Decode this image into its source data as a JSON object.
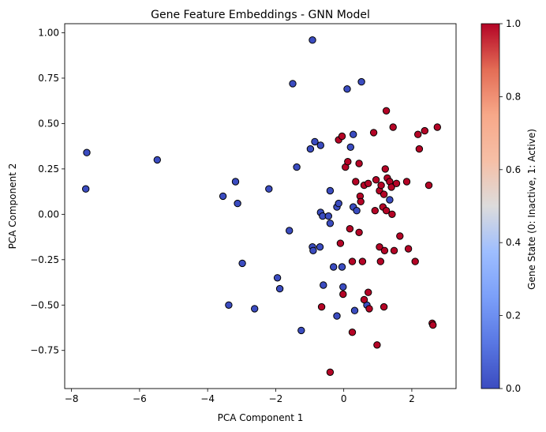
{
  "chart_data": {
    "type": "scatter",
    "title": "Gene Feature Embeddings - GNN Model",
    "xlabel": "PCA Component 1",
    "ylabel": "PCA Component 2",
    "xlim": [
      -8.2,
      3.3
    ],
    "ylim": [
      -0.96,
      1.05
    ],
    "xticks": [
      -8,
      -6,
      -4,
      -2,
      0,
      2
    ],
    "yticks": [
      -0.75,
      -0.5,
      -0.25,
      0.0,
      0.25,
      0.5,
      0.75,
      1.0
    ],
    "xtick_labels": [
      "−8",
      "−6",
      "−4",
      "−2",
      "0",
      "2"
    ],
    "ytick_labels": [
      "−0.75",
      "−0.50",
      "−0.25",
      "0.00",
      "0.25",
      "0.50",
      "0.75",
      "1.00"
    ],
    "grid": false,
    "colormap": "coolwarm",
    "colorbar": {
      "label": "Gene State (0: Inactive, 1: Active)",
      "range": [
        0,
        1
      ],
      "ticks": [
        0.0,
        0.2,
        0.4,
        0.6,
        0.8,
        1.0
      ],
      "tick_labels": [
        "0.0",
        "0.2",
        "0.4",
        "0.6",
        "0.8",
        "1.0"
      ]
    },
    "colors": {
      "inactive": "#3b4cc0",
      "active": "#b40426",
      "marker_edge": "#000000"
    },
    "points": [
      {
        "x": -7.55,
        "y": 0.34,
        "state": 0
      },
      {
        "x": -7.58,
        "y": 0.14,
        "state": 0
      },
      {
        "x": -5.48,
        "y": 0.3,
        "state": 0
      },
      {
        "x": -3.55,
        "y": 0.1,
        "state": 0
      },
      {
        "x": -3.18,
        "y": 0.18,
        "state": 0
      },
      {
        "x": -3.12,
        "y": 0.06,
        "state": 0
      },
      {
        "x": -2.98,
        "y": -0.27,
        "state": 0
      },
      {
        "x": -3.38,
        "y": -0.5,
        "state": 0
      },
      {
        "x": -2.62,
        "y": -0.52,
        "state": 0
      },
      {
        "x": -2.2,
        "y": 0.14,
        "state": 0
      },
      {
        "x": -1.95,
        "y": -0.35,
        "state": 0
      },
      {
        "x": -1.88,
        "y": -0.41,
        "state": 0
      },
      {
        "x": -1.6,
        "y": -0.09,
        "state": 0
      },
      {
        "x": -1.5,
        "y": 0.72,
        "state": 0
      },
      {
        "x": -1.38,
        "y": 0.26,
        "state": 0
      },
      {
        "x": -1.25,
        "y": -0.64,
        "state": 0
      },
      {
        "x": -0.92,
        "y": 0.96,
        "state": 0
      },
      {
        "x": -0.98,
        "y": 0.36,
        "state": 0
      },
      {
        "x": -0.85,
        "y": 0.4,
        "state": 0
      },
      {
        "x": -0.68,
        "y": 0.38,
        "state": 0
      },
      {
        "x": -0.92,
        "y": -0.18,
        "state": 0
      },
      {
        "x": -0.9,
        "y": -0.2,
        "state": 0
      },
      {
        "x": -0.7,
        "y": -0.18,
        "state": 0
      },
      {
        "x": -0.68,
        "y": 0.01,
        "state": 0
      },
      {
        "x": -0.62,
        "y": -0.01,
        "state": 0
      },
      {
        "x": -0.45,
        "y": -0.01,
        "state": 0
      },
      {
        "x": -0.4,
        "y": -0.05,
        "state": 0
      },
      {
        "x": -0.4,
        "y": 0.13,
        "state": 0
      },
      {
        "x": -0.6,
        "y": -0.39,
        "state": 0
      },
      {
        "x": -0.3,
        "y": -0.29,
        "state": 0
      },
      {
        "x": -0.2,
        "y": 0.04,
        "state": 0
      },
      {
        "x": -0.15,
        "y": 0.06,
        "state": 0
      },
      {
        "x": -0.2,
        "y": -0.56,
        "state": 0
      },
      {
        "x": -0.05,
        "y": -0.29,
        "state": 0
      },
      {
        "x": -0.02,
        "y": -0.4,
        "state": 0
      },
      {
        "x": 0.1,
        "y": 0.69,
        "state": 0
      },
      {
        "x": 0.2,
        "y": 0.37,
        "state": 0
      },
      {
        "x": 0.28,
        "y": 0.44,
        "state": 0
      },
      {
        "x": 0.28,
        "y": 0.04,
        "state": 0
      },
      {
        "x": 0.38,
        "y": 0.02,
        "state": 0
      },
      {
        "x": 0.52,
        "y": 0.73,
        "state": 0
      },
      {
        "x": 0.32,
        "y": -0.53,
        "state": 0
      },
      {
        "x": 0.68,
        "y": -0.5,
        "state": 0
      },
      {
        "x": 1.35,
        "y": 0.08,
        "state": 0
      },
      {
        "x": -0.15,
        "y": 0.41,
        "state": 1
      },
      {
        "x": -0.05,
        "y": 0.43,
        "state": 1
      },
      {
        "x": 0.05,
        "y": 0.26,
        "state": 1
      },
      {
        "x": 0.12,
        "y": 0.29,
        "state": 1
      },
      {
        "x": 0.45,
        "y": 0.28,
        "state": 1
      },
      {
        "x": 0.35,
        "y": 0.18,
        "state": 1
      },
      {
        "x": 0.48,
        "y": 0.1,
        "state": 1
      },
      {
        "x": 0.5,
        "y": 0.07,
        "state": 1
      },
      {
        "x": 0.6,
        "y": 0.16,
        "state": 1
      },
      {
        "x": 0.72,
        "y": 0.17,
        "state": 1
      },
      {
        "x": 0.88,
        "y": 0.45,
        "state": 1
      },
      {
        "x": 0.95,
        "y": 0.19,
        "state": 1
      },
      {
        "x": 0.92,
        "y": 0.02,
        "state": 1
      },
      {
        "x": 0.18,
        "y": -0.08,
        "state": 1
      },
      {
        "x": 0.45,
        "y": -0.1,
        "state": 1
      },
      {
        "x": -0.1,
        "y": -0.16,
        "state": 1
      },
      {
        "x": 0.25,
        "y": -0.26,
        "state": 1
      },
      {
        "x": 0.55,
        "y": -0.26,
        "state": 1
      },
      {
        "x": -0.65,
        "y": -0.51,
        "state": 1
      },
      {
        "x": -0.02,
        "y": -0.44,
        "state": 1
      },
      {
        "x": 0.6,
        "y": -0.47,
        "state": 1
      },
      {
        "x": 0.72,
        "y": -0.43,
        "state": 1
      },
      {
        "x": 0.75,
        "y": -0.52,
        "state": 1
      },
      {
        "x": 0.25,
        "y": -0.65,
        "state": 1
      },
      {
        "x": 0.98,
        "y": -0.72,
        "state": 1
      },
      {
        "x": -0.4,
        "y": -0.87,
        "state": 1
      },
      {
        "x": 1.25,
        "y": 0.57,
        "state": 1
      },
      {
        "x": 1.45,
        "y": 0.48,
        "state": 1
      },
      {
        "x": 1.05,
        "y": 0.13,
        "state": 1
      },
      {
        "x": 1.1,
        "y": 0.16,
        "state": 1
      },
      {
        "x": 1.18,
        "y": 0.11,
        "state": 1
      },
      {
        "x": 1.22,
        "y": 0.25,
        "state": 1
      },
      {
        "x": 1.28,
        "y": 0.2,
        "state": 1
      },
      {
        "x": 1.35,
        "y": 0.18,
        "state": 1
      },
      {
        "x": 1.4,
        "y": 0.15,
        "state": 1
      },
      {
        "x": 1.55,
        "y": 0.17,
        "state": 1
      },
      {
        "x": 1.15,
        "y": 0.04,
        "state": 1
      },
      {
        "x": 1.25,
        "y": 0.02,
        "state": 1
      },
      {
        "x": 1.42,
        "y": 0.0,
        "state": 1
      },
      {
        "x": 1.05,
        "y": -0.18,
        "state": 1
      },
      {
        "x": 1.2,
        "y": -0.2,
        "state": 1
      },
      {
        "x": 1.48,
        "y": -0.2,
        "state": 1
      },
      {
        "x": 1.65,
        "y": -0.12,
        "state": 1
      },
      {
        "x": 1.85,
        "y": 0.18,
        "state": 1
      },
      {
        "x": 1.9,
        "y": -0.19,
        "state": 1
      },
      {
        "x": 1.08,
        "y": -0.26,
        "state": 1
      },
      {
        "x": 1.18,
        "y": -0.51,
        "state": 1
      },
      {
        "x": 2.1,
        "y": -0.26,
        "state": 1
      },
      {
        "x": 2.18,
        "y": 0.44,
        "state": 1
      },
      {
        "x": 2.22,
        "y": 0.36,
        "state": 1
      },
      {
        "x": 2.38,
        "y": 0.46,
        "state": 1
      },
      {
        "x": 2.5,
        "y": 0.16,
        "state": 1
      },
      {
        "x": 2.75,
        "y": 0.48,
        "state": 1
      },
      {
        "x": 2.6,
        "y": -0.6,
        "state": 1
      },
      {
        "x": 2.62,
        "y": -0.61,
        "state": 1
      }
    ]
  }
}
